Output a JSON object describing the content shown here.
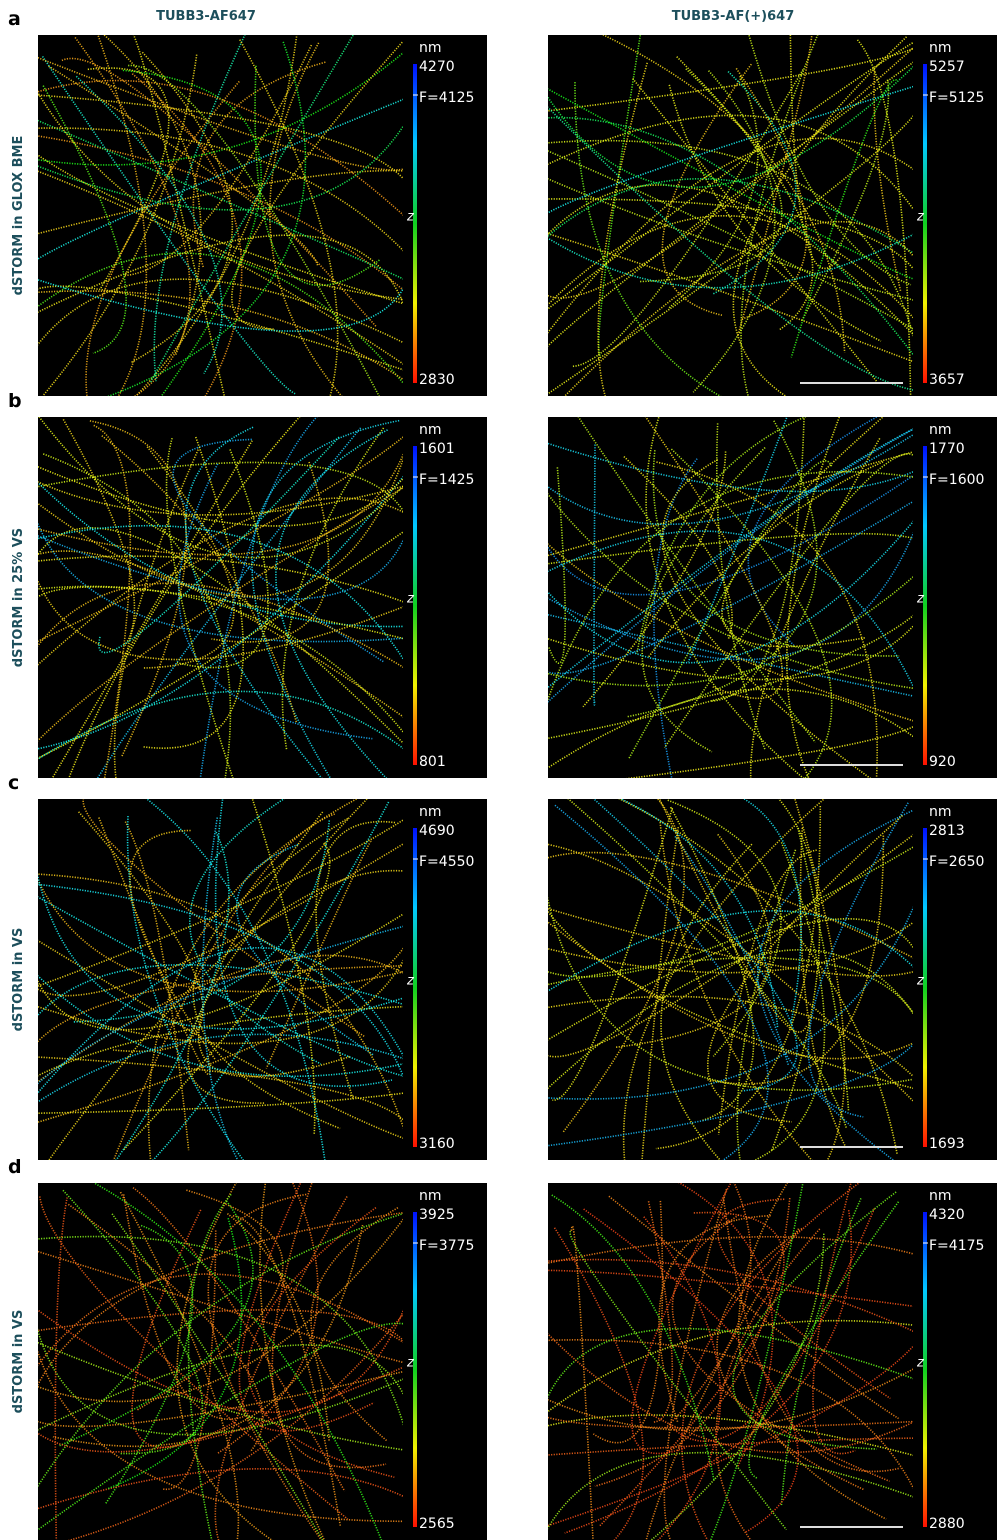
{
  "columns": [
    "TUBB3-AF647",
    "TUBB3-AF(+)647"
  ],
  "rows": [
    {
      "letter": "a",
      "label": "dSTORM in GLOX BME",
      "panels": [
        {
          "unit": "nm",
          "top": "4270",
          "focus": "F=4125",
          "axis": "z",
          "bottom": "2830"
        },
        {
          "unit": "nm",
          "top": "5257",
          "focus": "F=5125",
          "axis": "z",
          "bottom": "3657"
        }
      ]
    },
    {
      "letter": "b",
      "label": "dSTORM in 25% VS",
      "panels": [
        {
          "unit": "nm",
          "top": "1601",
          "focus": "F=1425",
          "axis": "z",
          "bottom": "801"
        },
        {
          "unit": "nm",
          "top": "1770",
          "focus": "F=1600",
          "axis": "z",
          "bottom": "920"
        }
      ]
    },
    {
      "letter": "c",
      "label": "dSTORM in VS",
      "panels": [
        {
          "unit": "nm",
          "top": "4690",
          "focus": "F=4550",
          "axis": "z",
          "bottom": "3160"
        },
        {
          "unit": "nm",
          "top": "2813",
          "focus": "F=2650",
          "axis": "z",
          "bottom": "1693"
        }
      ]
    },
    {
      "letter": "d",
      "label": "dSTORM in VS",
      "panels": [
        {
          "unit": "nm",
          "top": "3925",
          "focus": "F=3775",
          "axis": "z",
          "bottom": "2565"
        },
        {
          "unit": "nm",
          "top": "4320",
          "focus": "F=4175",
          "axis": "z",
          "bottom": "2880"
        }
      ]
    }
  ]
}
